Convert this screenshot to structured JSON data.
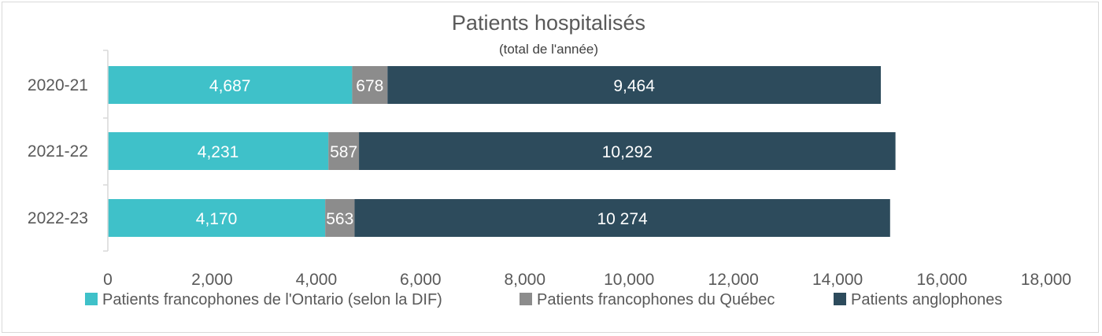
{
  "chart_data": {
    "type": "bar",
    "orientation": "horizontal",
    "stacked": true,
    "title": "Patients hospitalisés",
    "subtitle": "(total de l'année)",
    "categories": [
      "2020-21",
      "2021-22",
      "2022-23"
    ],
    "series": [
      {
        "name": "Patients francophones de l'Ontario (selon la DIF)",
        "color": "#3fc1c9",
        "values": [
          4687,
          4231,
          4170
        ],
        "labels": [
          "4,687",
          "4,231",
          "4,170"
        ]
      },
      {
        "name": "Patients francophones du Québec",
        "color": "#8c8c8c",
        "values": [
          678,
          587,
          563
        ],
        "labels": [
          "678",
          "587",
          "563"
        ]
      },
      {
        "name": "Patients anglophones",
        "color": "#2d4b5c",
        "values": [
          9464,
          10292,
          10274
        ],
        "labels": [
          "9,464",
          "10,292",
          "10 274"
        ]
      }
    ],
    "xlim": [
      0,
      18000
    ],
    "xticks": [
      0,
      2000,
      4000,
      6000,
      8000,
      10000,
      12000,
      14000,
      16000,
      18000
    ],
    "xtick_labels": [
      "0",
      "2,000",
      "4,000",
      "6,000",
      "8,000",
      "10,000",
      "12,000",
      "14,000",
      "16,000",
      "18,000"
    ],
    "grid": false,
    "legend_position": "bottom"
  }
}
